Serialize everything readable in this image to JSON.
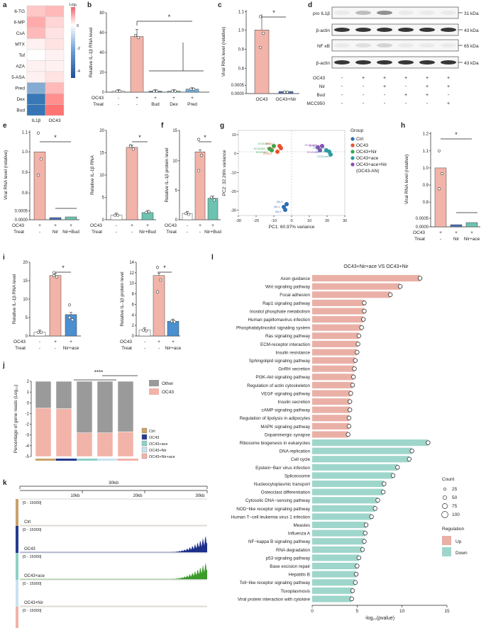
{
  "panel_letters": [
    "a",
    "b",
    "c",
    "d",
    "e",
    "f",
    "g",
    "h",
    "i",
    "j",
    "k",
    "l"
  ],
  "a": {
    "rows": [
      "6-TG",
      "6-MP",
      "CsA",
      "MTX",
      "Tof",
      "AZA",
      "5-ASA",
      "Pred",
      "Dex",
      "Bud"
    ],
    "cols": [
      "IL1β",
      "OC43"
    ],
    "values": [
      [
        0.4,
        0.5
      ],
      [
        0.6,
        0.3
      ],
      [
        0.5,
        0.2
      ],
      [
        0.1,
        0.2
      ],
      [
        0.0,
        0.1
      ],
      [
        0.1,
        0.1
      ],
      [
        0.1,
        0.2
      ],
      [
        -2.8,
        0.5
      ],
      [
        -4.5,
        0.8
      ],
      [
        -4.6,
        1.0
      ]
    ],
    "legend_title": "Log₂",
    "legend_ticks": [
      "0",
      "-2",
      "-4"
    ]
  },
  "b": {
    "ylabel": "Relative IL-1β RNA level",
    "yticks": [
      "0",
      "20",
      "40",
      "60",
      "80"
    ],
    "ylim": [
      0,
      80
    ],
    "bars": [
      {
        "oc43": "-",
        "treat": "-",
        "value": 1,
        "color": "#ffffff"
      },
      {
        "oc43": "+",
        "treat": "-",
        "value": 56,
        "color": "#f2b3a8"
      },
      {
        "oc43": "+",
        "treat": "Bud",
        "value": 1,
        "color": "#4a6fb3"
      },
      {
        "oc43": "+",
        "treat": "Dex",
        "value": 1,
        "color": "#6cc3b0"
      },
      {
        "oc43": "+",
        "treat": "Pred",
        "value": 3,
        "color": "#6fb3df"
      }
    ],
    "row1": "OC43",
    "row2": "Treat",
    "star": "*"
  },
  "c": {
    "ylabel": "Viral RNA level (relative)",
    "yticks": [
      "0.0000",
      "0.0005",
      "0.8",
      "0.9",
      "1.0",
      "1.1"
    ],
    "bars": [
      "OC43",
      "OC43+Nir"
    ],
    "star": "*"
  },
  "d": {
    "bands": [
      "pro IL1β",
      "β-actin",
      "NF κB",
      "β-actin"
    ],
    "kda": [
      "31 kDa",
      "43 kDa",
      "65 kDa",
      "43 kDa"
    ],
    "rows": [
      {
        "label": "OC43",
        "vals": [
          "-",
          "+",
          "+",
          "+",
          "+",
          "+"
        ]
      },
      {
        "label": "Nir",
        "vals": [
          "-",
          "-",
          "+",
          "-",
          "+",
          "+"
        ]
      },
      {
        "label": "Bud",
        "vals": [
          "-",
          "-",
          "-",
          "+",
          "+",
          "-"
        ]
      },
      {
        "label": "MCC950",
        "vals": [
          "-",
          "-",
          "-",
          "-",
          "-",
          "+"
        ]
      }
    ]
  },
  "e": {
    "left": {
      "ylabel": "Viral RNA level (relative)",
      "yticks": [
        "0.0000",
        "0.0005",
        "0.8",
        "0.9",
        "1.0",
        "1.1"
      ],
      "xl": [
        "+",
        "+",
        "+"
      ],
      "x2": [
        "-",
        "Nir",
        "Nir+Bud"
      ]
    },
    "right": {
      "ylabel": "Relative IL-1β RNA",
      "yticks": [
        "0",
        "5",
        "10",
        "15",
        "20"
      ],
      "x1": [
        "-",
        "+",
        "+"
      ],
      "x2": [
        "-",
        "-",
        "Nir+Bud"
      ]
    },
    "row1": "OC43",
    "row2": "Treat",
    "star": "*"
  },
  "f": {
    "ylabel": "Relative IL-1β protein level",
    "yticks": [
      "0",
      "5",
      "10",
      "15"
    ],
    "x1": [
      "-",
      "+",
      "+"
    ],
    "x2": [
      "-",
      "-",
      "Nir+Bud"
    ],
    "row1": "OC43",
    "row2": "Treat",
    "star": "*"
  },
  "g": {
    "xlabel": "PC1: 60.97% variance",
    "ylabel": "PC2: 32.26% variance",
    "xticks": [
      "-30",
      "-20",
      "-10",
      "0",
      "10",
      "20",
      "30"
    ],
    "yticks": [
      "10",
      "0",
      "-10",
      "-20",
      "-30"
    ],
    "legend_title": "Group",
    "groups": [
      {
        "name": "Ctrl",
        "color": "#2d6db5"
      },
      {
        "name": "OC43",
        "color": "#e8532b"
      },
      {
        "name": "OC43+Nir",
        "color": "#3aa64a"
      },
      {
        "name": "OC43+ace",
        "color": "#2a9ca0"
      },
      {
        "name": "OC43+ace+Nir",
        "color": "#8a4fb3"
      }
    ],
    "legend_extra": "(OC43-AN)",
    "pts": [
      "OC43-Nir3",
      "OC43-Nir2",
      "OC43-Nir1",
      "OC43-3",
      "OC43-1",
      "OC43-2",
      "OC43-AN2",
      "OC43-AN3",
      "OC43-AN1",
      "OC43-ace1",
      "OC43-ace2",
      "OC43-ace3",
      "Ctrl-3",
      "Ctrl-1",
      "Ctrl-2"
    ]
  },
  "h": {
    "ylabel": "Viral RNA level (relative)",
    "yticks": [
      "0.0000",
      "0.0005",
      "0.8",
      "0.9",
      "1.0",
      "1.1",
      "1.2"
    ],
    "x1": [
      "+",
      "+",
      "+"
    ],
    "x2": [
      "-",
      "Nir",
      "Nir+ace"
    ],
    "row1": "OC43",
    "row2": "Treat",
    "star": "*"
  },
  "i": {
    "left": {
      "ylabel": "Relative IL-1β RNA level",
      "yticks": [
        "0",
        "5",
        "10",
        "15",
        "20"
      ],
      "x1": [
        "-",
        "+",
        "+"
      ],
      "x2": [
        "-",
        "-",
        "Nir+ace"
      ]
    },
    "right": {
      "ylabel": "Relative IL-1β protein level",
      "yticks": [
        "0",
        "2",
        "4",
        "6",
        "8",
        "10",
        "12",
        "14"
      ],
      "x1": [
        "-",
        "+",
        "+"
      ],
      "x2": [
        "-",
        "-",
        "Nir+ace"
      ]
    },
    "row1": "OC43",
    "row2": "Treat",
    "star": "*"
  },
  "j": {
    "ylabel": "Percentage of gene reads (Log₁₀)",
    "yticks": [
      "2",
      "1",
      "0",
      "-1",
      "-2",
      "-3",
      "-4",
      "-5"
    ],
    "legend1": [
      "Other",
      "OC43"
    ],
    "legend1_colors": [
      "#9a9a9a",
      "#f2b3a8"
    ],
    "bars_oc43": [
      -0.5,
      -0.55,
      -2.8,
      -2.8,
      -2.7
    ],
    "legend2": [
      "Ctrl",
      "OC43",
      "OC43+ace",
      "OC43+Nir",
      "OC43+Nir+ace"
    ],
    "legend2_colors": [
      "#c9a26a",
      "#263a8f",
      "#8ed0c6",
      "#c9e2ef",
      "#f2b3a8"
    ],
    "star": "****"
  },
  "k": {
    "scale": "30kb",
    "ticks": [
      "10kb",
      "20kb",
      "30kb"
    ],
    "range": "[0 - 15000]",
    "tracks": [
      "Ctrl",
      "OC43",
      "OC43+ace",
      "OC43+Nir",
      "OC43+Nir+ace"
    ],
    "colors": [
      "#c9a26a",
      "#263a8f",
      "#8ed0c6",
      "#c9e2ef",
      "#f2b3a8"
    ],
    "fill": [
      "#ffffff",
      "#1e2f8a",
      "#3a9a2a",
      "#ffffff",
      "#ffffff"
    ]
  },
  "l": {
    "title": "OC43+Nir+ace VS OC43+Nir",
    "xlabel": "-log₁₀(pvalue)",
    "xticks": [
      "0",
      "5",
      "10",
      "15"
    ],
    "pathways": [
      {
        "name": "Axon guidance",
        "v": 12.0,
        "reg": "up"
      },
      {
        "name": "Wnt signaling pathway",
        "v": 9.8,
        "reg": "up"
      },
      {
        "name": "Focal adhesion",
        "v": 8.7,
        "reg": "up"
      },
      {
        "name": "Rap1 signaling pathway",
        "v": 5.8,
        "reg": "up"
      },
      {
        "name": "Inositol phosphate metabolism",
        "v": 5.8,
        "reg": "up"
      },
      {
        "name": "Human papillomavirus infection",
        "v": 5.7,
        "reg": "up"
      },
      {
        "name": "Phosphatidylinositol signaling system",
        "v": 5.5,
        "reg": "up"
      },
      {
        "name": "Ras signaling pathway",
        "v": 5.2,
        "reg": "up"
      },
      {
        "name": "ECM-receptor interaction",
        "v": 5.1,
        "reg": "up"
      },
      {
        "name": "Insulin resistance",
        "v": 5.0,
        "reg": "up"
      },
      {
        "name": "Sphingolipid signaling pathway",
        "v": 4.8,
        "reg": "up"
      },
      {
        "name": "GnRH secretion",
        "v": 4.7,
        "reg": "up"
      },
      {
        "name": "PI3K-Akt signaling pathway",
        "v": 4.6,
        "reg": "up"
      },
      {
        "name": "Regulation of actin cytoskeleton",
        "v": 4.5,
        "reg": "up"
      },
      {
        "name": "VEGF signaling pathway",
        "v": 4.3,
        "reg": "up"
      },
      {
        "name": "Insulin secretion",
        "v": 4.2,
        "reg": "up"
      },
      {
        "name": "cAMP signaling pathway",
        "v": 4.2,
        "reg": "up"
      },
      {
        "name": "Regulation of lipolysis in adipocytes",
        "v": 4.1,
        "reg": "up"
      },
      {
        "name": "MAPK signaling pathway",
        "v": 4.1,
        "reg": "up"
      },
      {
        "name": "Dopaminergic synapse",
        "v": 4.0,
        "reg": "up"
      },
      {
        "name": "Ribosome biogenesis in eukaryotes",
        "v": 12.9,
        "reg": "down"
      },
      {
        "name": "DNA replication",
        "v": 11.1,
        "reg": "down"
      },
      {
        "name": "Cell cycle",
        "v": 10.8,
        "reg": "down"
      },
      {
        "name": "Epstein−Barr virus infection",
        "v": 9.5,
        "reg": "down"
      },
      {
        "name": "Spliceosome",
        "v": 9.0,
        "reg": "down"
      },
      {
        "name": "Nucleocytoplasmic transport",
        "v": 8.0,
        "reg": "down"
      },
      {
        "name": "Osteoclast differentiation",
        "v": 7.9,
        "reg": "down"
      },
      {
        "name": "Cytosolic DNA−sensing pathway",
        "v": 7.3,
        "reg": "down"
      },
      {
        "name": "NOD−like receptor signaling pathway",
        "v": 7.0,
        "reg": "down"
      },
      {
        "name": "Human T−cell leukemia virus 1 infection",
        "v": 6.6,
        "reg": "down"
      },
      {
        "name": "Measles",
        "v": 6.0,
        "reg": "down"
      },
      {
        "name": "Influenza A",
        "v": 5.9,
        "reg": "down"
      },
      {
        "name": "NF−kappa B signaling pathway",
        "v": 5.8,
        "reg": "down"
      },
      {
        "name": "RNA degradation",
        "v": 5.6,
        "reg": "down"
      },
      {
        "name": "p53 signaling pathway",
        "v": 5.2,
        "reg": "down"
      },
      {
        "name": "Base excision repair",
        "v": 5.0,
        "reg": "down"
      },
      {
        "name": "Hepatitis B",
        "v": 4.9,
        "reg": "down"
      },
      {
        "name": "Toll−like receptor signaling pathway",
        "v": 4.8,
        "reg": "down"
      },
      {
        "name": "Toxoplasmosis",
        "v": 4.5,
        "reg": "down"
      },
      {
        "name": "Viral protein interaction with cytokine",
        "v": 4.4,
        "reg": "down"
      }
    ],
    "count_title": "Count",
    "count_vals": [
      "25",
      "50",
      "75",
      "100"
    ],
    "reg_title": "Regulation",
    "reg_vals": [
      "Up",
      "Down"
    ],
    "up_color": "#eab0a6",
    "down_color": "#9ed6cb"
  }
}
